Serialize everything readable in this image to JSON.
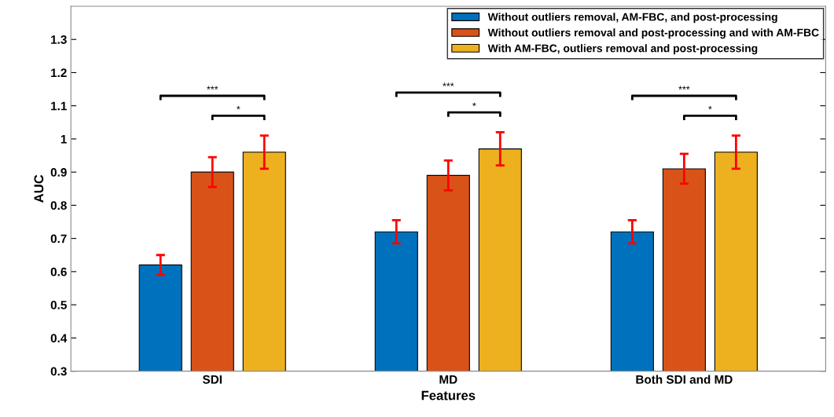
{
  "chart_data": {
    "type": "bar",
    "xlabel": "Features",
    "ylabel": "AUC",
    "categories": [
      "SDI",
      "MD",
      "Both SDI and MD"
    ],
    "series": [
      {
        "name": "Without outliers removal, AM-FBC, and post-processing",
        "color": "#0072bd",
        "values": [
          0.62,
          0.72,
          0.72
        ],
        "errors": [
          0.03,
          0.035,
          0.035
        ]
      },
      {
        "name": "Without outliers removal and post-processing and with AM-FBC",
        "color": "#d95319",
        "values": [
          0.9,
          0.89,
          0.91
        ],
        "errors": [
          0.045,
          0.045,
          0.045
        ]
      },
      {
        "name": "With AM-FBC, outliers removal and post-processing",
        "color": "#edb120",
        "values": [
          0.96,
          0.97,
          0.96
        ],
        "errors": [
          0.05,
          0.05,
          0.05
        ]
      }
    ],
    "annotations": [
      "***",
      "*",
      "***",
      "*",
      "***",
      "*"
    ],
    "ylim": [
      0.3,
      1.4
    ],
    "yticks": [
      0.3,
      0.4,
      0.5,
      0.6,
      0.7,
      0.8,
      0.9,
      1,
      1.1,
      1.2,
      1.3
    ],
    "grid": false,
    "legend": "top right"
  }
}
